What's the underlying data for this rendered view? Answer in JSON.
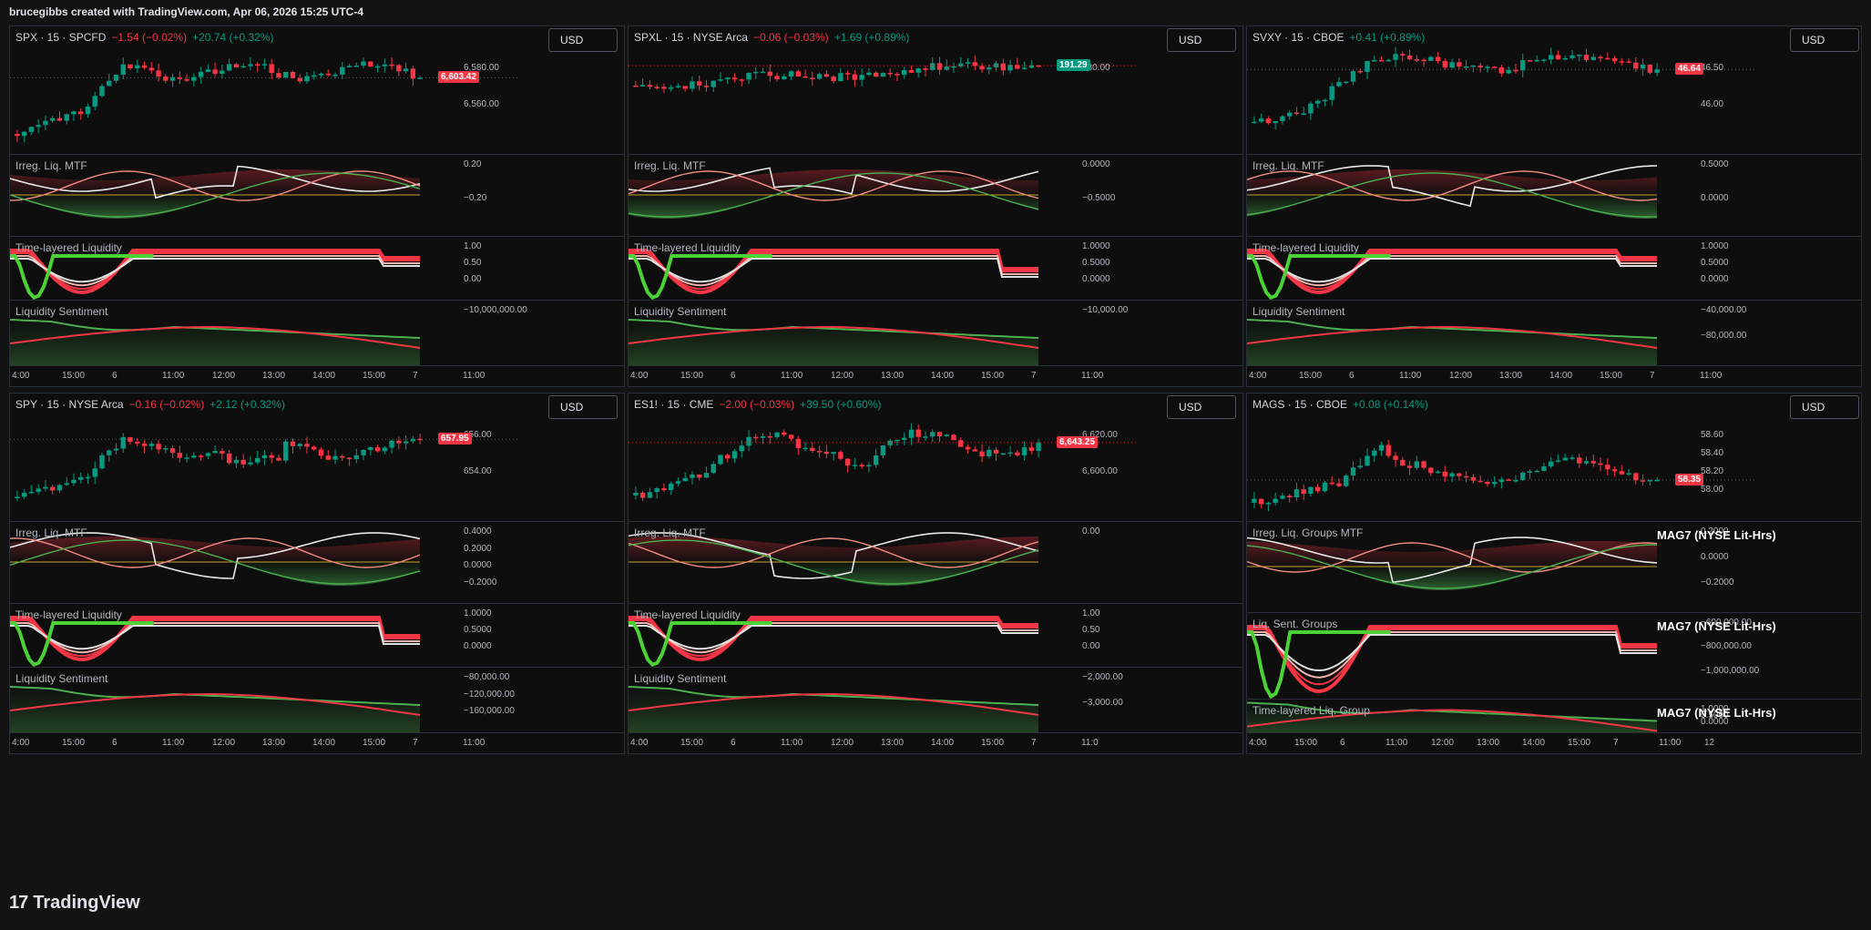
{
  "header": {
    "attribution": "brucegibbs created with TradingView.com, Apr 06, 2026 15:25 UTC-4"
  },
  "footer": {
    "logo": "17",
    "brand": "TradingView"
  },
  "colors": {
    "up": "#089981",
    "down": "#f23645",
    "background": "#0e0e0e",
    "grid": "#2a2e39"
  },
  "panels": [
    {
      "symbol": "SPX · 15 · SPCFD",
      "change1": "−1.54 (−0.02%)",
      "change2": "+20.74 (+0.32%)",
      "currency": "USD",
      "price_tag": "6,603.42",
      "price_tag_color": "#f23645",
      "price_axis": [
        "6,580.00",
        "6,560.00"
      ],
      "ind1": "Irreg. Liq. MTF",
      "ind1_axis": [
        "0.20",
        "−0.20"
      ],
      "ind2": "Time-layered Liquidity",
      "ind2_axis": [
        "1.00",
        "0.50",
        "0.00"
      ],
      "ind3": "Liquidity Sentiment",
      "ind3_axis": [
        "−10,000,000.00"
      ],
      "time_axis": [
        "4:00",
        "15:00",
        "6",
        "11:00",
        "12:00",
        "13:00",
        "14:00",
        "15:00",
        "7",
        "11:00"
      ]
    },
    {
      "symbol": "SPXL · 15 · NYSE Arca",
      "change1": "−0.06 (−0.03%)",
      "change2": "+1.69 (+0.89%)",
      "currency": "USD",
      "price_tag": "191.29",
      "price_tag_color": "#089981",
      "price_axis": [
        "180.00"
      ],
      "ind1": "Irreg. Liq. MTF",
      "ind1_axis": [
        "0.0000",
        "−0.5000"
      ],
      "ind2": "Time-layered Liquidity",
      "ind2_axis": [
        "1.0000",
        "0.5000",
        "0.0000"
      ],
      "ind3": "Liquidity Sentiment",
      "ind3_axis": [
        "−10,000.00"
      ],
      "time_axis": [
        "4:00",
        "15:00",
        "6",
        "11:00",
        "12:00",
        "13:00",
        "14:00",
        "15:00",
        "7",
        "11:00"
      ]
    },
    {
      "symbol": "SVXY · 15 · CBOE",
      "change1": "",
      "change2": "+0.41 (+0.89%)",
      "currency": "USD",
      "price_tag": "46.64",
      "price_tag_color": "#f23645",
      "price_axis": [
        "46.50",
        "46.00"
      ],
      "ind1": "Irreg. Liq. MTF",
      "ind1_axis": [
        "0.5000",
        "0.0000"
      ],
      "ind2": "Time-layered Liquidity",
      "ind2_axis": [
        "1.0000",
        "0.5000",
        "0.0000"
      ],
      "ind3": "Liquidity Sentiment",
      "ind3_axis": [
        "−40,000.00",
        "−80,000.00"
      ],
      "time_axis": [
        "4:00",
        "15:00",
        "6",
        "11:00",
        "12:00",
        "13:00",
        "14:00",
        "15:00",
        "7",
        "11:00"
      ]
    },
    {
      "symbol": "SPY · 15 · NYSE Arca",
      "change1": "−0.16 (−0.02%)",
      "change2": "+2.12 (+0.32%)",
      "currency": "USD",
      "price_tag": "657.95",
      "price_tag_color": "#f23645",
      "price_axis": [
        "656.00",
        "654.00"
      ],
      "ind1": "Irreg. Liq. MTF",
      "ind1_axis": [
        "0.4000",
        "0.2000",
        "0.0000",
        "−0.2000"
      ],
      "ind2": "Time-layered Liquidity",
      "ind2_axis": [
        "1.0000",
        "0.5000",
        "0.0000"
      ],
      "ind3": "Liquidity Sentiment",
      "ind3_axis": [
        "−80,000.00",
        "−120,000.00",
        "−160,000.00"
      ],
      "time_axis": [
        "4:00",
        "15:00",
        "6",
        "11:00",
        "12:00",
        "13:00",
        "14:00",
        "15:00",
        "7",
        "11:00"
      ]
    },
    {
      "symbol": "ES1! · 15 · CME",
      "change1": "−2.00 (−0.03%)",
      "change2": "+39.50 (+0.60%)",
      "currency": "USD",
      "price_tag": "6,643.25",
      "price_tag_color": "#f23645",
      "price_axis": [
        "6,620.00",
        "6,600.00"
      ],
      "ind1": "Irreg. Liq. MTF",
      "ind1_axis": [
        "0.00"
      ],
      "ind2": "Time-layered Liquidity",
      "ind2_axis": [
        "1.00",
        "0.50",
        "0.00"
      ],
      "ind3": "Liquidity Sentiment",
      "ind3_axis": [
        "−2,000.00",
        "−3,000.00"
      ],
      "time_axis": [
        "4:00",
        "15:00",
        "6",
        "11:00",
        "12:00",
        "13:00",
        "14:00",
        "15:00",
        "7",
        "11:0"
      ]
    },
    {
      "symbol": "MAGS · 15 · CBOE",
      "change1": "",
      "change2": "+0.08 (+0.14%)",
      "currency": "USD",
      "price_tag": "58.35",
      "price_tag_color": "#f23645",
      "price_axis": [
        "58.60",
        "58.40",
        "58.20",
        "58.00"
      ],
      "ind1": "Irreg. Liq. Groups MTF",
      "ind1_axis": [
        "0.2000",
        "0.0000",
        "−0.2000"
      ],
      "ind2": "Liq. Sent. Groups",
      "ind2_axis": [
        "−600,000.00",
        "−800,000.00",
        "−1,000,000.00"
      ],
      "ind3": "Time-layered Liq. Group",
      "ind3_axis": [
        "1.0000",
        "0.5000",
        "0.0000"
      ],
      "mag_label": "MAG7 (NYSE Lit-Hrs)",
      "time_axis": [
        "4:00",
        "15:00",
        "6",
        "11:00",
        "12:00",
        "13:00",
        "14:00",
        "15:00",
        "7",
        "11:00",
        "12"
      ]
    }
  ]
}
